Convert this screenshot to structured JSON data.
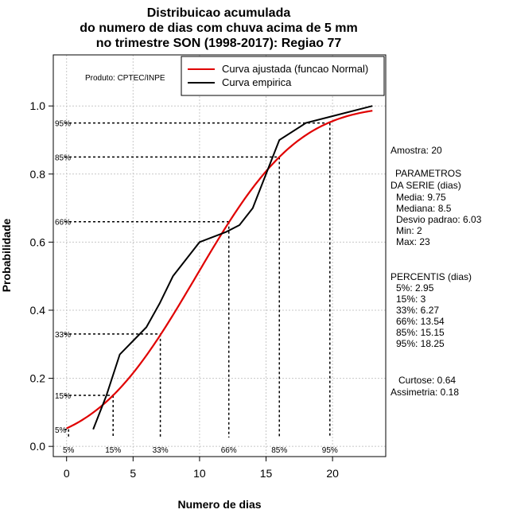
{
  "chart_data": {
    "type": "line",
    "title": [
      "Distribuicao acumulada",
      "do numero de dias com chuva acima de 5 mm",
      "no trimestre SON (1998-2017): Regiao 77"
    ],
    "xlabel": "Numero de dias",
    "ylabel": "Probabilidade",
    "xlim": [
      -1,
      24
    ],
    "ylim": [
      -0.03,
      1.15
    ],
    "xticks": [
      0,
      5,
      10,
      15,
      20
    ],
    "yticks": [
      0.0,
      0.2,
      0.4,
      0.6,
      0.8,
      1.0
    ],
    "ytick_labels": [
      "0.0",
      "0.2",
      "0.4",
      "0.6",
      "0.8",
      "1.0"
    ],
    "grid": true,
    "legend_position": "top-right",
    "series": [
      {
        "name": "Curva ajustada (funcao Normal)",
        "color": "#e00000",
        "kind": "normal_cdf",
        "mean": 9.75,
        "sd": 6.03,
        "x_from": 0,
        "x_to": 23
      },
      {
        "name": "Curva empirica",
        "color": "#000000",
        "x": [
          2,
          3,
          4,
          5,
          6,
          7,
          8,
          9,
          10,
          12,
          13,
          14,
          15,
          16,
          18,
          20,
          23
        ],
        "y": [
          0.05,
          0.15,
          0.27,
          0.31,
          0.35,
          0.42,
          0.5,
          0.55,
          0.6,
          0.63,
          0.65,
          0.7,
          0.8,
          0.9,
          0.95,
          0.97,
          1.0
        ]
      }
    ],
    "percentile_markers": [
      {
        "label": "5%",
        "x": 0.15,
        "y": 0.05
      },
      {
        "label": "15%",
        "x": 3.5,
        "y": 0.15
      },
      {
        "label": "33%",
        "x": 7.05,
        "y": 0.33
      },
      {
        "label": "66%",
        "x": 12.2,
        "y": 0.66
      },
      {
        "label": "85%",
        "x": 16.0,
        "y": 0.85
      },
      {
        "label": "95%",
        "x": 19.8,
        "y": 0.95
      }
    ],
    "annotation": "Produto: CPTEC/INPE"
  },
  "side_panel": {
    "amostra": "Amostra: 20",
    "param_title_1": "PARAMETROS",
    "param_title_2": "DA SERIE (dias)",
    "media": "Media: 9.75",
    "mediana": "Mediana: 8.5",
    "desvio": "Desvio padrao: 6.03",
    "min": "Min: 2",
    "max": "Max: 23",
    "percentis_title": "PERCENTIS (dias)",
    "p5": "5%: 2.95",
    "p15": "15%: 3",
    "p33": "33%: 6.27",
    "p66": "66%: 13.54",
    "p85": "85%: 15.15",
    "p95": "95%: 18.25",
    "curtose": "Curtose: 0.64",
    "assimetria": "Assimetria: 0.18"
  }
}
